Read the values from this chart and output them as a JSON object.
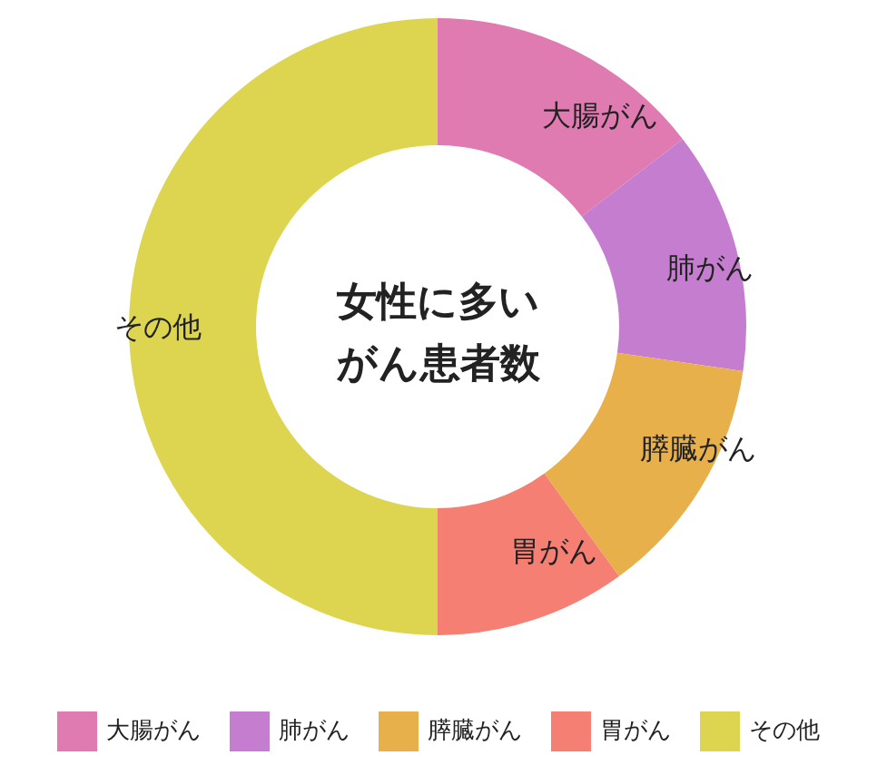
{
  "chart_data": {
    "type": "donut",
    "title": "女性に多いがん患者数",
    "categories": [
      "大腸がん",
      "肺がん",
      "膵臓がん",
      "胃がん",
      "その他"
    ],
    "values": [
      14.6,
      12.7,
      12.7,
      10,
      50
    ],
    "colors": [
      "#e07bb2",
      "#c57dcf",
      "#e8b04a",
      "#f47f72",
      "#ddd550"
    ],
    "legend": "bottom"
  }
}
